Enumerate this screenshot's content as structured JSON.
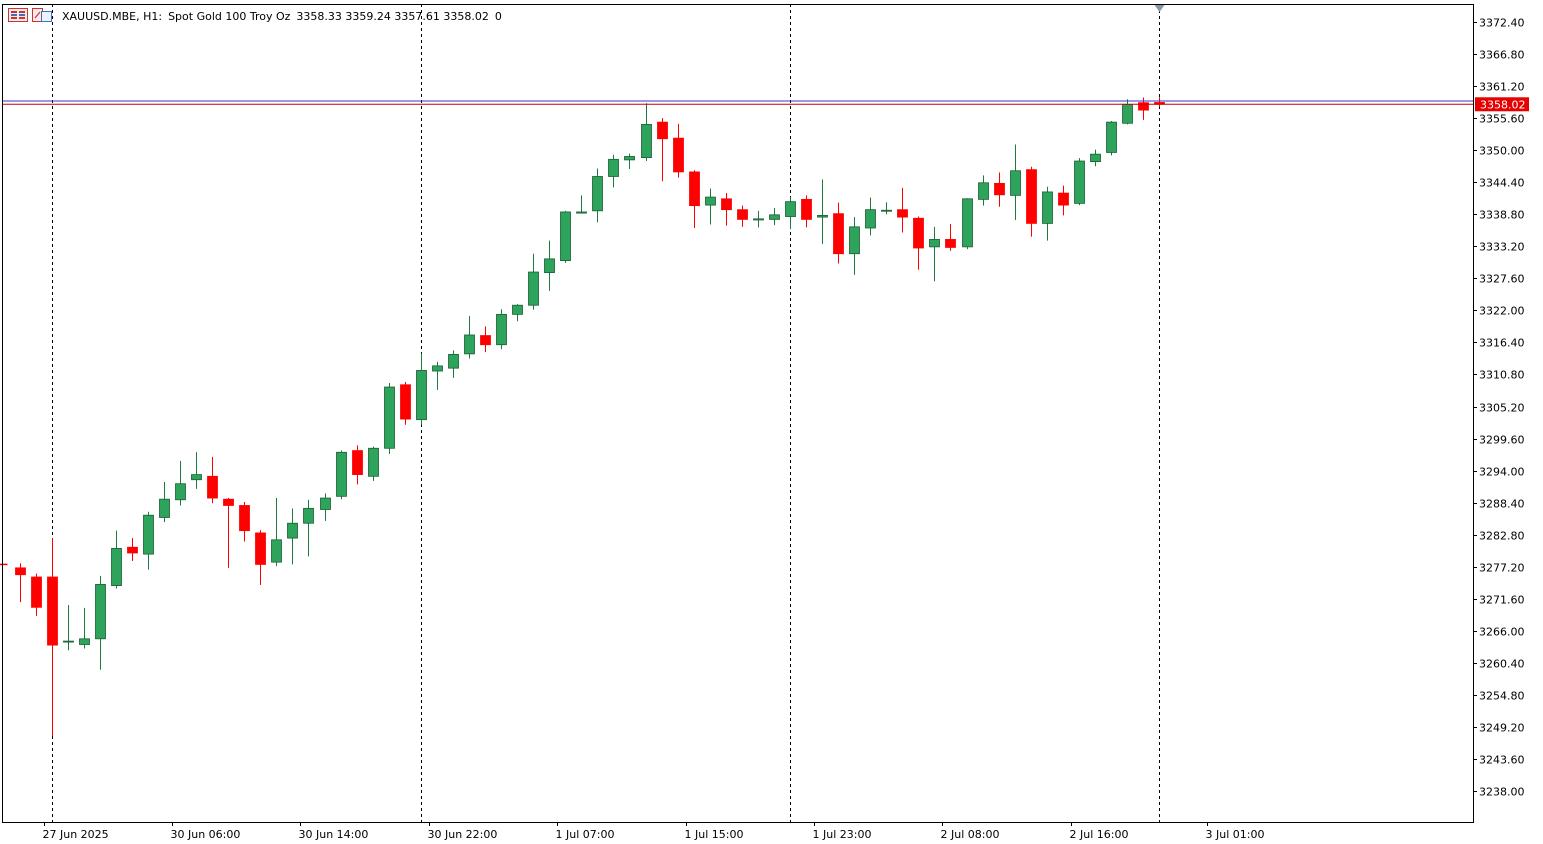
{
  "header": {
    "symbol": "XAUUSD.MBE, H1:",
    "description": "Spot Gold 100 Troy Oz",
    "ohlc": "3358.33 3359.24 3357.61 3358.02",
    "volume": "0"
  },
  "colors": {
    "bull": "#2ea35c",
    "bear": "#ff0000",
    "ask_line": "#3333cc",
    "bid_line": "#cc0000",
    "price_tag_bg": "#e60000",
    "axis": "#000000",
    "separator": "#000000"
  },
  "icons": [
    "chart-menu-icon",
    "indicator-list-icon",
    "current-bar-marker-icon"
  ],
  "chart_data": {
    "type": "candlestick",
    "timeframe": "H1",
    "ylim": [
      3234.0,
      3376.0
    ],
    "y_ticks": [
      "3372.40",
      "3366.80",
      "3361.20",
      "3355.60",
      "3350.00",
      "3344.40",
      "3338.80",
      "3333.20",
      "3327.60",
      "3322.00",
      "3316.40",
      "3310.80",
      "3305.20",
      "3299.60",
      "3294.00",
      "3288.40",
      "3282.80",
      "3277.20",
      "3271.60",
      "3266.00",
      "3260.40",
      "3254.80",
      "3249.20",
      "3243.60",
      "3238.00"
    ],
    "x_ticks": [
      {
        "label": "27 Jun 2025",
        "index": 2.5
      },
      {
        "label": "30 Jun 06:00",
        "index": 10.5
      },
      {
        "label": "30 Jun 14:00",
        "index": 18.5
      },
      {
        "label": "30 Jun 22:00",
        "index": 26.5
      },
      {
        "label": "1 Jul 07:00",
        "index": 34.5
      },
      {
        "label": "1 Jul 15:00",
        "index": 42.5
      },
      {
        "label": "1 Jul 23:00",
        "index": 50.5
      },
      {
        "label": "2 Jul 08:00",
        "index": 58.5
      },
      {
        "label": "2 Jul 16:00",
        "index": 66.5
      },
      {
        "label": "3 Jul 01:00",
        "index": 75
      }
    ],
    "day_separators": [
      3,
      26,
      49,
      72
    ],
    "current_price": "3358.02",
    "ask_price": 3358.6,
    "bid_price": 3358.02,
    "candles": [
      {
        "o": 3277.6,
        "h": 3277.6,
        "l": 3277.6,
        "c": 3277.6
      },
      {
        "o": 3277.0,
        "h": 3277.8,
        "l": 3271.0,
        "c": 3275.8
      },
      {
        "o": 3275.4,
        "h": 3276.0,
        "l": 3268.6,
        "c": 3270.1
      },
      {
        "o": 3275.4,
        "h": 3282.2,
        "l": 3247.6,
        "c": 3263.5
      },
      {
        "o": 3264.2,
        "h": 3270.5,
        "l": 3262.6,
        "c": 3264.2
      },
      {
        "o": 3263.6,
        "h": 3270.0,
        "l": 3262.9,
        "c": 3264.6
      },
      {
        "o": 3264.6,
        "h": 3275.6,
        "l": 3259.2,
        "c": 3274.1
      },
      {
        "o": 3273.9,
        "h": 3283.5,
        "l": 3273.4,
        "c": 3280.4
      },
      {
        "o": 3280.6,
        "h": 3282.2,
        "l": 3278.2,
        "c": 3279.6
      },
      {
        "o": 3279.4,
        "h": 3286.8,
        "l": 3276.7,
        "c": 3286.2
      },
      {
        "o": 3285.8,
        "h": 3292.0,
        "l": 3285.0,
        "c": 3289.0
      },
      {
        "o": 3288.9,
        "h": 3295.7,
        "l": 3287.9,
        "c": 3291.7
      },
      {
        "o": 3292.4,
        "h": 3297.2,
        "l": 3290.8,
        "c": 3293.3
      },
      {
        "o": 3293.0,
        "h": 3296.4,
        "l": 3288.3,
        "c": 3289.2
      },
      {
        "o": 3289.0,
        "h": 3289.2,
        "l": 3277.0,
        "c": 3287.9
      },
      {
        "o": 3287.9,
        "h": 3288.5,
        "l": 3281.6,
        "c": 3283.5
      },
      {
        "o": 3283.1,
        "h": 3283.6,
        "l": 3274.0,
        "c": 3277.6
      },
      {
        "o": 3278.0,
        "h": 3289.2,
        "l": 3277.3,
        "c": 3281.9
      },
      {
        "o": 3282.2,
        "h": 3287.4,
        "l": 3277.6,
        "c": 3284.8
      },
      {
        "o": 3284.8,
        "h": 3288.9,
        "l": 3279.0,
        "c": 3287.4
      },
      {
        "o": 3287.2,
        "h": 3290.0,
        "l": 3285.2,
        "c": 3289.2
      },
      {
        "o": 3289.5,
        "h": 3297.5,
        "l": 3289.0,
        "c": 3297.2
      },
      {
        "o": 3297.5,
        "h": 3298.4,
        "l": 3291.6,
        "c": 3293.3
      },
      {
        "o": 3293.0,
        "h": 3298.2,
        "l": 3292.2,
        "c": 3297.9
      },
      {
        "o": 3297.9,
        "h": 3309.3,
        "l": 3296.9,
        "c": 3308.6
      },
      {
        "o": 3309.0,
        "h": 3309.5,
        "l": 3302.0,
        "c": 3303.0
      },
      {
        "o": 3302.9,
        "h": 3314.5,
        "l": 3302.0,
        "c": 3311.5
      },
      {
        "o": 3311.4,
        "h": 3313.0,
        "l": 3308.1,
        "c": 3312.3
      },
      {
        "o": 3311.9,
        "h": 3315.0,
        "l": 3310.2,
        "c": 3314.3
      },
      {
        "o": 3314.4,
        "h": 3321.0,
        "l": 3313.6,
        "c": 3317.7
      },
      {
        "o": 3317.6,
        "h": 3319.2,
        "l": 3314.7,
        "c": 3316.0
      },
      {
        "o": 3316.0,
        "h": 3322.2,
        "l": 3315.2,
        "c": 3321.3
      },
      {
        "o": 3321.3,
        "h": 3323.1,
        "l": 3320.1,
        "c": 3322.9
      },
      {
        "o": 3322.9,
        "h": 3331.9,
        "l": 3322.1,
        "c": 3328.7
      },
      {
        "o": 3328.6,
        "h": 3334.2,
        "l": 3325.4,
        "c": 3331.0
      },
      {
        "o": 3330.7,
        "h": 3339.4,
        "l": 3330.3,
        "c": 3339.2
      },
      {
        "o": 3339.0,
        "h": 3342.1,
        "l": 3338.9,
        "c": 3339.2
      },
      {
        "o": 3339.4,
        "h": 3346.8,
        "l": 3337.4,
        "c": 3345.4
      },
      {
        "o": 3345.4,
        "h": 3349.2,
        "l": 3343.5,
        "c": 3348.4
      },
      {
        "o": 3348.3,
        "h": 3349.4,
        "l": 3346.7,
        "c": 3348.9
      },
      {
        "o": 3348.7,
        "h": 3358.2,
        "l": 3348.1,
        "c": 3354.5
      },
      {
        "o": 3354.9,
        "h": 3355.6,
        "l": 3344.6,
        "c": 3352.0
      },
      {
        "o": 3352.1,
        "h": 3354.6,
        "l": 3345.2,
        "c": 3346.2
      },
      {
        "o": 3346.2,
        "h": 3346.5,
        "l": 3336.4,
        "c": 3340.3
      },
      {
        "o": 3340.4,
        "h": 3343.3,
        "l": 3337.0,
        "c": 3341.8
      },
      {
        "o": 3341.5,
        "h": 3342.5,
        "l": 3336.8,
        "c": 3339.6
      },
      {
        "o": 3339.6,
        "h": 3340.3,
        "l": 3336.6,
        "c": 3337.9
      },
      {
        "o": 3337.8,
        "h": 3339.4,
        "l": 3336.5,
        "c": 3338.0
      },
      {
        "o": 3337.9,
        "h": 3339.9,
        "l": 3336.9,
        "c": 3338.7
      },
      {
        "o": 3338.4,
        "h": 3341.8,
        "l": 3336.2,
        "c": 3341.0
      },
      {
        "o": 3341.4,
        "h": 3342.1,
        "l": 3336.5,
        "c": 3337.9
      },
      {
        "o": 3338.3,
        "h": 3344.9,
        "l": 3333.6,
        "c": 3338.6
      },
      {
        "o": 3338.9,
        "h": 3340.8,
        "l": 3330.2,
        "c": 3331.9
      },
      {
        "o": 3331.9,
        "h": 3338.3,
        "l": 3328.2,
        "c": 3336.6
      },
      {
        "o": 3336.4,
        "h": 3341.7,
        "l": 3335.1,
        "c": 3339.6
      },
      {
        "o": 3339.5,
        "h": 3340.9,
        "l": 3338.8,
        "c": 3339.5
      },
      {
        "o": 3339.6,
        "h": 3343.4,
        "l": 3335.6,
        "c": 3338.3
      },
      {
        "o": 3338.1,
        "h": 3338.4,
        "l": 3329.1,
        "c": 3332.9
      },
      {
        "o": 3333.1,
        "h": 3336.6,
        "l": 3327.1,
        "c": 3334.4
      },
      {
        "o": 3334.4,
        "h": 3337.1,
        "l": 3332.4,
        "c": 3333.0
      },
      {
        "o": 3333.1,
        "h": 3341.6,
        "l": 3332.7,
        "c": 3341.5
      },
      {
        "o": 3341.4,
        "h": 3345.6,
        "l": 3340.3,
        "c": 3344.3
      },
      {
        "o": 3344.2,
        "h": 3346.1,
        "l": 3340.1,
        "c": 3342.2
      },
      {
        "o": 3342.1,
        "h": 3351.0,
        "l": 3337.8,
        "c": 3346.4
      },
      {
        "o": 3346.6,
        "h": 3347.1,
        "l": 3334.9,
        "c": 3337.2
      },
      {
        "o": 3337.2,
        "h": 3343.6,
        "l": 3334.2,
        "c": 3342.7
      },
      {
        "o": 3342.5,
        "h": 3343.8,
        "l": 3338.6,
        "c": 3340.4
      },
      {
        "o": 3340.7,
        "h": 3348.6,
        "l": 3340.4,
        "c": 3348.1
      },
      {
        "o": 3348.0,
        "h": 3350.1,
        "l": 3347.2,
        "c": 3349.3
      },
      {
        "o": 3349.6,
        "h": 3355.1,
        "l": 3349.1,
        "c": 3354.9
      },
      {
        "o": 3354.7,
        "h": 3358.9,
        "l": 3354.5,
        "c": 3358.0
      },
      {
        "o": 3358.3,
        "h": 3359.2,
        "l": 3355.3,
        "c": 3357.0
      },
      {
        "o": 3358.33,
        "h": 3359.24,
        "l": 3357.61,
        "c": 3358.02
      }
    ]
  }
}
